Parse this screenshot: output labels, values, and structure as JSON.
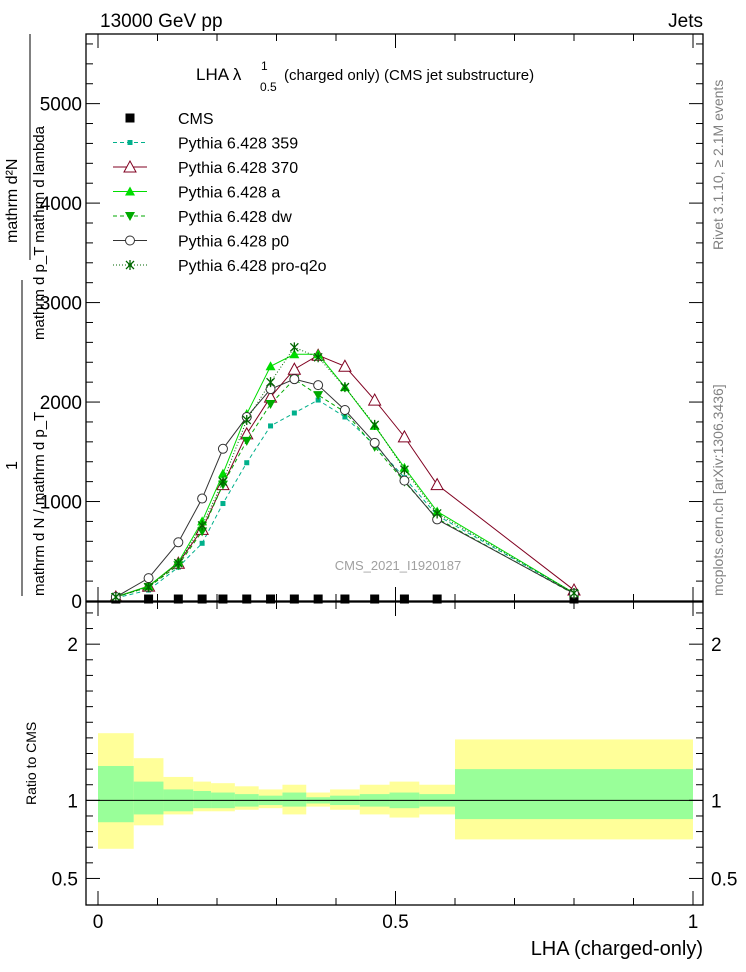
{
  "header": {
    "left": "13000 GeV pp",
    "right": "Jets"
  },
  "side_labels": {
    "rivet": "Rivet 3.1.10, ≥ 2.1M events",
    "mcplots": "mcplots.cern.ch [arXiv:1306.3436]"
  },
  "chart_data": [
    {
      "type": "line",
      "title": "LHA λ¹₀.₅ (charged only) (CMS jet substructure)",
      "title_main": "LHA λ",
      "title_sup": "1",
      "title_sub": "0.5",
      "title_rest": " (charged only) (CMS jet substructure)",
      "watermark": "CMS_2021_I1920187",
      "ylabel": "1 / mathrm d N / mathrm d p_T    mathrm d²N / mathrm d p_T mathrm d lambda",
      "ylabel_top": "mathrm d²N",
      "ylabel_mid": "mathrm d p_T mathrm d lambda",
      "ylabel_one": "1",
      "ylabel_bottom": "mathrm d N / mathrm d p_T",
      "xlim": [
        0,
        1
      ],
      "ylim": [
        0,
        5700
      ],
      "y_ticks": [
        0,
        1000,
        2000,
        3000,
        4000,
        5000
      ],
      "y_tick_labels": [
        "0",
        "1000",
        "2000",
        "3000",
        "4000",
        "5000"
      ],
      "x": [
        0.03,
        0.085,
        0.135,
        0.175,
        0.21,
        0.25,
        0.29,
        0.33,
        0.37,
        0.415,
        0.465,
        0.515,
        0.57,
        0.8
      ],
      "legend": {
        "placement": "top-left",
        "entries": [
          "CMS",
          "Pythia 6.428 359",
          "Pythia 6.428 370",
          "Pythia 6.428 a",
          "Pythia 6.428 dw",
          "Pythia 6.428 p0",
          "Pythia 6.428 pro-q2o"
        ]
      },
      "series": [
        {
          "name": "CMS",
          "color": "#000000",
          "marker": "square",
          "values": [
            20,
            20,
            20,
            20,
            20,
            20,
            20,
            20,
            20,
            20,
            20,
            20,
            20,
            20
          ]
        },
        {
          "name": "Pythia 6.428 359",
          "color": "#00b08b",
          "marker": "smallsquare",
          "dash": "4,3",
          "values": [
            30,
            110,
            340,
            580,
            980,
            1390,
            1760,
            1890,
            2020,
            1850,
            1570,
            1240,
            860,
            80
          ]
        },
        {
          "name": "Pythia 6.428 370",
          "color": "#800020",
          "marker": "opentriangle",
          "values": [
            40,
            150,
            380,
            720,
            1170,
            1680,
            2050,
            2330,
            2470,
            2360,
            2020,
            1650,
            1170,
            110
          ]
        },
        {
          "name": "Pythia 6.428 a",
          "color": "#00dd00",
          "marker": "triangle",
          "values": [
            40,
            150,
            390,
            800,
            1280,
            1880,
            2360,
            2480,
            2480,
            2150,
            1760,
            1340,
            900,
            80
          ]
        },
        {
          "name": "Pythia 6.428 dw",
          "color": "#00aa00",
          "marker": "downtriangle",
          "dash": "4,3",
          "values": [
            40,
            140,
            360,
            700,
            1170,
            1610,
            1980,
            2230,
            2070,
            1900,
            1550,
            1200,
            830,
            70
          ]
        },
        {
          "name": "Pythia 6.428 p0",
          "color": "#333333",
          "marker": "opencircle",
          "values": [
            40,
            230,
            590,
            1030,
            1530,
            1850,
            2130,
            2230,
            2170,
            1920,
            1590,
            1210,
            820,
            75
          ]
        },
        {
          "name": "Pythia 6.428 pro-q2o",
          "color": "#006600",
          "marker": "star",
          "dash": "1,2",
          "values": [
            40,
            140,
            380,
            760,
            1200,
            1820,
            2200,
            2550,
            2450,
            2150,
            1770,
            1320,
            880,
            80
          ]
        }
      ]
    },
    {
      "type": "area",
      "ylabel": "Ratio to CMS",
      "xlabel": "LHA (charged-only)",
      "xlim": [
        0,
        1
      ],
      "ylim": [
        0.33,
        2.27
      ],
      "y_ticks": [
        0.5,
        1,
        2
      ],
      "y_tick_labels": [
        "0.5",
        "1",
        "2"
      ],
      "x_ticks": [
        0,
        0.5,
        1
      ],
      "x_tick_labels": [
        "0",
        "0.5",
        "1"
      ],
      "bin_edges": [
        0,
        0.06,
        0.11,
        0.16,
        0.19,
        0.23,
        0.27,
        0.31,
        0.35,
        0.39,
        0.44,
        0.49,
        0.54,
        0.6,
        1.0
      ],
      "band_inner": {
        "color": "#99ff99",
        "low": [
          0.86,
          0.91,
          0.93,
          0.95,
          0.95,
          0.96,
          0.97,
          0.96,
          0.98,
          0.97,
          0.96,
          0.95,
          0.96,
          0.88
        ],
        "high": [
          1.22,
          1.12,
          1.07,
          1.06,
          1.05,
          1.04,
          1.03,
          1.05,
          1.02,
          1.03,
          1.04,
          1.05,
          1.04,
          1.2
        ]
      },
      "band_outer": {
        "color": "#ffff99",
        "low": [
          0.69,
          0.84,
          0.91,
          0.93,
          0.93,
          0.94,
          0.95,
          0.91,
          0.96,
          0.94,
          0.91,
          0.89,
          0.91,
          0.75
        ],
        "high": [
          1.43,
          1.27,
          1.15,
          1.12,
          1.11,
          1.09,
          1.07,
          1.1,
          1.05,
          1.07,
          1.1,
          1.12,
          1.1,
          1.39
        ]
      },
      "reference_line": 1
    }
  ]
}
